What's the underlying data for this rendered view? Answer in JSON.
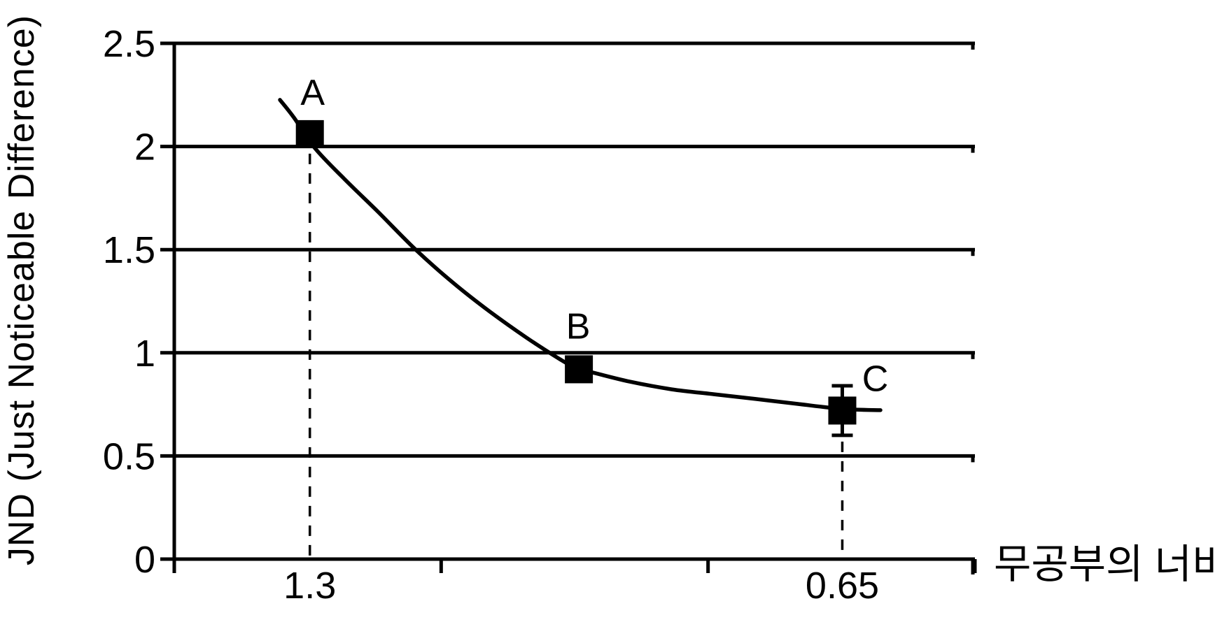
{
  "figure": {
    "background": "#ffffff",
    "ink": "#000000"
  },
  "chart_data": {
    "type": "line",
    "title": "",
    "xlabel": "무공부의 너비",
    "ylabel": "JND (Just Noticeable Difference)",
    "xlim": [
      0,
      3
    ],
    "ylim": [
      0,
      2.5
    ],
    "grid": "horizontal",
    "legend": "none",
    "y_ticks": [
      {
        "value": 0,
        "label": "0"
      },
      {
        "value": 0.5,
        "label": "0.5"
      },
      {
        "value": 1,
        "label": "1"
      },
      {
        "value": 1.5,
        "label": "1.5"
      },
      {
        "value": 2,
        "label": "2"
      },
      {
        "value": 2.5,
        "label": "2.5"
      }
    ],
    "x_boundary_ticks": [
      1,
      2,
      3
    ],
    "points": [
      {
        "name": "A",
        "x": 0.508,
        "y": 2.06,
        "x_label": "1.3",
        "drop_line": true
      },
      {
        "name": "B",
        "x": 1.516,
        "y": 0.92
      },
      {
        "name": "C",
        "x": 2.503,
        "y": 0.72,
        "x_label": "0.65",
        "drop_line": true,
        "error_plus": 0.12,
        "error_minus": 0.12
      }
    ],
    "trend_curve": [
      [
        0.396,
        2.226
      ],
      [
        0.448,
        2.141
      ],
      [
        0.527,
        1.992
      ],
      [
        0.637,
        1.843
      ],
      [
        0.763,
        1.684
      ],
      [
        0.907,
        1.497
      ],
      [
        1.046,
        1.338
      ],
      [
        1.183,
        1.199
      ],
      [
        1.319,
        1.074
      ],
      [
        1.445,
        0.969
      ],
      [
        1.516,
        0.918
      ],
      [
        1.568,
        0.904
      ],
      [
        1.707,
        0.86
      ],
      [
        1.864,
        0.823
      ],
      [
        2.022,
        0.799
      ],
      [
        2.179,
        0.776
      ],
      [
        2.337,
        0.752
      ],
      [
        2.504,
        0.728
      ],
      [
        2.646,
        0.722
      ]
    ]
  }
}
